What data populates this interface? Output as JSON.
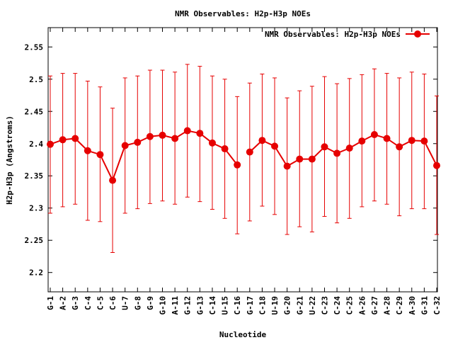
{
  "chart_data": {
    "type": "line",
    "title": "NMR Observables: H2p-H3p NOEs",
    "xlabel": "Nucleotide",
    "ylabel": "H2p-H3p (Angstroms)",
    "ylim": [
      2.17,
      2.58
    ],
    "yticks": [
      "2.2",
      "2.25",
      "2.3",
      "2.35",
      "2.4",
      "2.45",
      "2.5",
      "2.55"
    ],
    "legend": {
      "label": "NMR Observables: H2p-H3p NOEs",
      "position": "top-right"
    },
    "grid": false,
    "color": "#e60000",
    "categories": [
      "G-1",
      "A-2",
      "G-3",
      "C-4",
      "C-5",
      "C-6",
      "U-7",
      "G-8",
      "G-9",
      "G-10",
      "A-11",
      "G-12",
      "G-13",
      "C-14",
      "U-15",
      "C-16",
      "G-17",
      "C-18",
      "U-19",
      "G-20",
      "G-21",
      "U-22",
      "C-23",
      "C-24",
      "C-25",
      "A-26",
      "G-27",
      "A-28",
      "C-29",
      "A-30",
      "G-31",
      "C-32"
    ],
    "series": [
      {
        "name": "NMR Observables: H2p-H3p NOEs",
        "segments": [
          {
            "x_index": [
              0,
              1,
              2,
              3,
              4,
              5,
              6,
              7,
              8,
              9,
              10,
              11,
              12,
              13,
              14,
              15
            ],
            "values": [
              2.399,
              2.406,
              2.408,
              2.389,
              2.383,
              2.343,
              2.397,
              2.402,
              2.411,
              2.413,
              2.408,
              2.42,
              2.416,
              2.401,
              2.392,
              2.367
            ],
            "upper": [
              2.505,
              2.509,
              2.509,
              2.497,
              2.488,
              2.455,
              2.502,
              2.505,
              2.514,
              2.514,
              2.511,
              2.523,
              2.52,
              2.505,
              2.5,
              2.473
            ],
            "lower": [
              2.292,
              2.302,
              2.306,
              2.281,
              2.279,
              2.231,
              2.292,
              2.299,
              2.307,
              2.311,
              2.306,
              2.317,
              2.31,
              2.298,
              2.284,
              2.26
            ]
          },
          {
            "x_index": [
              16,
              17,
              18,
              19,
              20,
              21,
              22,
              23,
              24,
              25,
              26,
              27,
              28,
              29,
              30,
              31
            ],
            "values": [
              2.387,
              2.405,
              2.396,
              2.365,
              2.376,
              2.376,
              2.395,
              2.385,
              2.393,
              2.404,
              2.414,
              2.408,
              2.395,
              2.405,
              2.404,
              2.366
            ],
            "upper": [
              2.494,
              2.508,
              2.502,
              2.471,
              2.482,
              2.489,
              2.504,
              2.493,
              2.501,
              2.507,
              2.516,
              2.509,
              2.502,
              2.511,
              2.508,
              2.474
            ],
            "lower": [
              2.28,
              2.303,
              2.29,
              2.259,
              2.271,
              2.263,
              2.287,
              2.277,
              2.284,
              2.302,
              2.311,
              2.306,
              2.288,
              2.299,
              2.299,
              2.259
            ]
          }
        ]
      }
    ]
  }
}
